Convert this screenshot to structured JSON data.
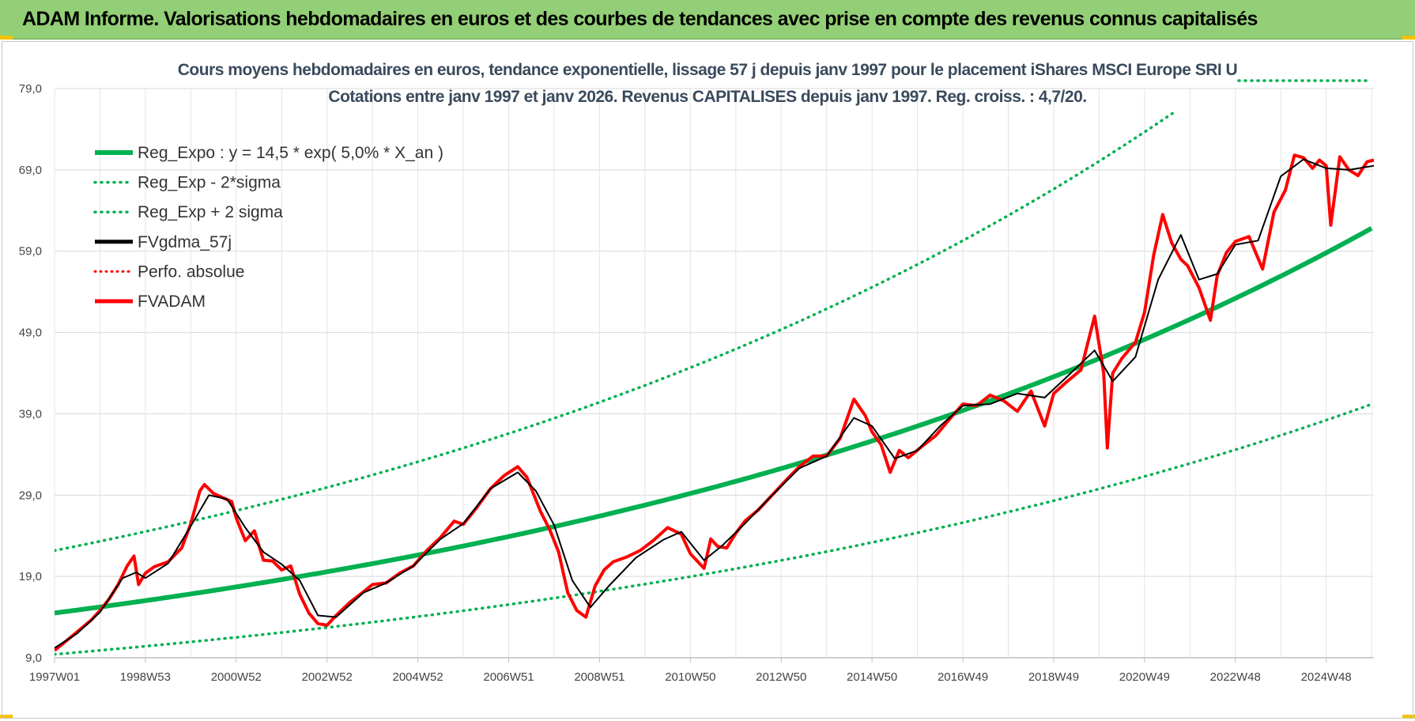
{
  "header": {
    "title": "ADAM Informe. Valorisations hebdomadaires en euros et des courbes de tendances avec prise en compte des revenus connus capitalisés"
  },
  "colors": {
    "banner": "#92cf76",
    "trend": "#00b050",
    "fvadam": "#ff0000",
    "gdma": "#000000",
    "perfo": "#ff0000"
  },
  "chart_data": {
    "type": "line",
    "title": "Cours moyens hebdomadaires en euros, tendance exponentielle, lissage 57 j depuis janv 1997 pour le placement iShares MSCI Europe SRI U",
    "subtitle": "Cotations entre janv 1997 et janv 2026. Revenus CAPITALISES depuis janv 1997. Reg. croiss. : 4,7/20.",
    "xlabel": "",
    "ylabel": "",
    "ylim": [
      9,
      79
    ],
    "xlim": [
      1997.0,
      2026.05
    ],
    "y_ticks": [
      "79,0",
      "69,0",
      "59,0",
      "49,0",
      "39,0",
      "29,0",
      "19,0",
      "9,0"
    ],
    "y_tick_values": [
      79,
      69,
      59,
      49,
      39,
      29,
      19,
      9
    ],
    "x_ticks": [
      "1997W01",
      "1998W53",
      "2000W52",
      "2002W52",
      "2004W52",
      "2006W51",
      "2008W51",
      "2010W50",
      "2012W50",
      "2014W50",
      "2016W49",
      "2018W49",
      "2020W49",
      "2022W48",
      "2024W48"
    ],
    "x_tick_values": [
      1997.0,
      1999.0,
      2001.0,
      2003.0,
      2005.0,
      2007.0,
      2009.0,
      2011.0,
      2013.0,
      2015.0,
      2017.0,
      2019.0,
      2021.0,
      2023.0,
      2025.0
    ],
    "grid": true,
    "legend_position": "top-left",
    "regression": {
      "a": 14.5,
      "rate": 0.05,
      "lower_factor": 0.65,
      "upper_factor": 1.53
    },
    "legend": [
      {
        "label": "Reg_Expo : y = 14,5 * exp( 5,0% *  X_an )",
        "series": "reg_expo"
      },
      {
        "label": "Reg_Exp - 2*sigma",
        "series": "reg_lower"
      },
      {
        "label": "Reg_Exp + 2 sigma",
        "series": "reg_upper"
      },
      {
        "label": "FVgdma_57j",
        "series": "fvgdma"
      },
      {
        "label": "Perfo. absolue",
        "series": "perfo"
      },
      {
        "label": "FVADAM",
        "series": "fvadam"
      }
    ],
    "series": [
      {
        "name": "FVADAM",
        "x": [
          1997.0,
          1997.2,
          1997.5,
          1997.8,
          1998.0,
          1998.2,
          1998.4,
          1998.6,
          1998.75,
          1998.85,
          1999.0,
          1999.2,
          1999.5,
          1999.8,
          2000.0,
          2000.2,
          2000.3,
          2000.5,
          2000.7,
          2000.9,
          2001.0,
          2001.2,
          2001.4,
          2001.6,
          2001.8,
          2002.0,
          2002.2,
          2002.4,
          2002.6,
          2002.8,
          2003.0,
          2003.2,
          2003.5,
          2003.8,
          2004.0,
          2004.3,
          2004.6,
          2004.9,
          2005.2,
          2005.5,
          2005.8,
          2006.0,
          2006.3,
          2006.6,
          2006.9,
          2007.2,
          2007.4,
          2007.5,
          2007.7,
          2007.9,
          2008.1,
          2008.3,
          2008.5,
          2008.7,
          2008.9,
          2009.1,
          2009.3,
          2009.6,
          2009.9,
          2010.2,
          2010.5,
          2010.8,
          2011.0,
          2011.3,
          2011.45,
          2011.6,
          2011.8,
          2012.0,
          2012.2,
          2012.5,
          2012.8,
          2013.1,
          2013.4,
          2013.7,
          2014.0,
          2014.3,
          2014.6,
          2014.85,
          2015.0,
          2015.2,
          2015.4,
          2015.6,
          2015.8,
          2016.1,
          2016.4,
          2016.7,
          2017.0,
          2017.3,
          2017.6,
          2017.9,
          2018.2,
          2018.5,
          2018.8,
          2019.0,
          2019.3,
          2019.6,
          2019.9,
          2020.1,
          2020.18,
          2020.3,
          2020.5,
          2020.8,
          2021.0,
          2021.2,
          2021.4,
          2021.6,
          2021.8,
          2021.95,
          2022.2,
          2022.45,
          2022.6,
          2022.8,
          2023.0,
          2023.3,
          2023.6,
          2023.85,
          2024.1,
          2024.3,
          2024.5,
          2024.7,
          2024.85,
          2025.0,
          2025.1,
          2025.3,
          2025.5,
          2025.7,
          2025.9,
          2026.05
        ],
        "values": [
          9.9,
          10.8,
          12.2,
          13.6,
          14.8,
          16.2,
          18.0,
          20.3,
          21.5,
          18.0,
          19.4,
          20.2,
          20.8,
          22.5,
          25.5,
          29.5,
          30.3,
          29.2,
          28.7,
          28.2,
          26.2,
          23.4,
          24.6,
          21.0,
          20.9,
          19.8,
          20.3,
          16.8,
          14.5,
          13.2,
          13.0,
          14.2,
          15.8,
          17.1,
          18.0,
          18.2,
          19.4,
          20.3,
          22.2,
          23.8,
          25.8,
          25.4,
          27.5,
          29.8,
          31.4,
          32.5,
          31.2,
          29.8,
          27.0,
          24.8,
          22.0,
          17.0,
          14.8,
          14.0,
          17.8,
          19.8,
          20.8,
          21.4,
          22.2,
          23.5,
          25.0,
          24.2,
          21.8,
          20.0,
          23.6,
          22.7,
          22.5,
          24.3,
          25.8,
          27.2,
          29.0,
          30.8,
          32.5,
          33.8,
          33.8,
          36.0,
          40.8,
          38.8,
          36.8,
          35.2,
          31.8,
          34.5,
          33.6,
          35.0,
          36.3,
          38.3,
          40.2,
          40.0,
          41.3,
          40.6,
          39.3,
          41.8,
          37.5,
          41.5,
          43.0,
          44.4,
          51.0,
          44.0,
          34.8,
          44.0,
          45.8,
          47.8,
          51.5,
          58.5,
          63.5,
          60.0,
          58.0,
          57.2,
          54.5,
          50.5,
          56.0,
          58.8,
          60.2,
          60.8,
          56.8,
          63.8,
          66.5,
          70.8,
          70.5,
          69.2,
          70.2,
          69.5,
          62.2,
          70.6,
          69.0,
          68.3,
          70.0,
          70.2
        ]
      },
      {
        "name": "FVgdma_57j",
        "x": [
          1997.0,
          1997.5,
          1998.0,
          1998.5,
          1998.8,
          1999.0,
          1999.5,
          2000.0,
          2000.4,
          2000.8,
          2001.2,
          2001.6,
          2002.0,
          2002.4,
          2002.8,
          2003.2,
          2003.8,
          2004.3,
          2004.9,
          2005.5,
          2006.0,
          2006.6,
          2007.2,
          2007.6,
          2008.0,
          2008.4,
          2008.8,
          2009.2,
          2009.8,
          2010.4,
          2010.8,
          2011.3,
          2011.7,
          2012.2,
          2012.8,
          2013.4,
          2014.0,
          2014.6,
          2015.0,
          2015.5,
          2016.0,
          2016.5,
          2017.0,
          2017.6,
          2018.2,
          2018.8,
          2019.3,
          2019.9,
          2020.3,
          2020.8,
          2021.3,
          2021.8,
          2022.2,
          2022.6,
          2023.0,
          2023.5,
          2024.0,
          2024.5,
          2025.0,
          2025.5,
          2026.05
        ],
        "values": [
          10.2,
          12.0,
          14.6,
          18.8,
          19.5,
          18.8,
          20.6,
          25.2,
          29.0,
          28.5,
          25.0,
          22.0,
          20.5,
          18.5,
          14.2,
          14.0,
          17.0,
          18.2,
          20.3,
          23.6,
          25.5,
          29.8,
          31.8,
          29.5,
          25.3,
          18.5,
          15.2,
          17.8,
          21.3,
          23.5,
          24.5,
          21.0,
          22.8,
          25.5,
          29.0,
          32.3,
          33.8,
          38.5,
          37.5,
          33.5,
          34.5,
          37.5,
          40.0,
          40.2,
          41.5,
          41.0,
          43.6,
          46.8,
          43.0,
          46.0,
          55.5,
          61.0,
          55.5,
          56.2,
          59.8,
          60.3,
          68.2,
          70.3,
          69.2,
          69.0,
          69.5
        ]
      }
    ]
  },
  "footer": {}
}
